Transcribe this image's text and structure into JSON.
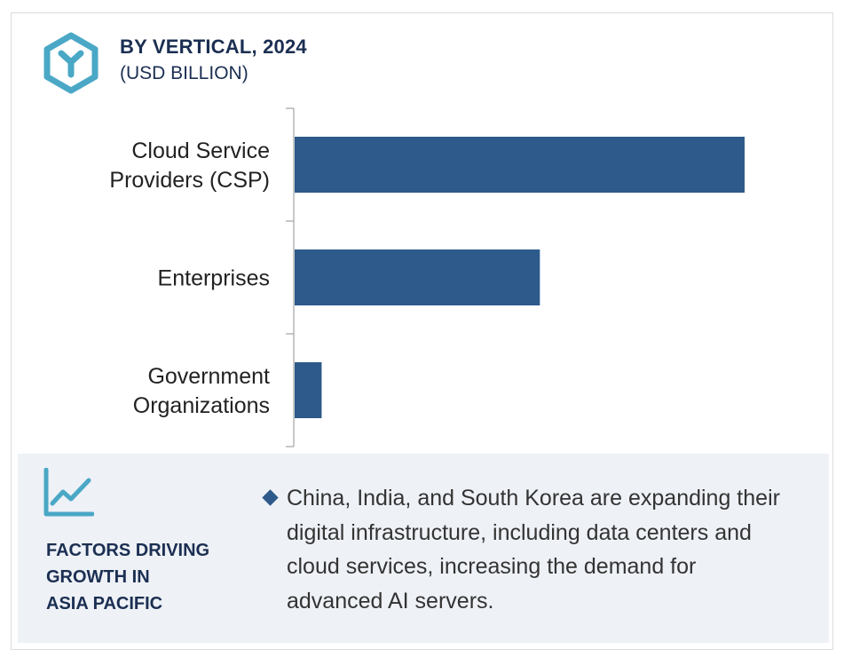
{
  "header": {
    "title": "BY VERTICAL, 2024",
    "subtitle": "(USD BILLION)",
    "logo_icon": "hexagon-y-logo-icon",
    "accent_color": "#4aa8c6"
  },
  "chart_data": {
    "type": "bar",
    "orientation": "horizontal",
    "title": "BY VERTICAL, 2024",
    "subtitle": "(USD BILLION)",
    "categories": [
      [
        "Cloud Service",
        "Providers (CSP)"
      ],
      [
        "Enterprises"
      ],
      [
        "Government",
        "Organizations"
      ]
    ],
    "values": [
      100,
      54.5,
      6
    ],
    "xlim": [
      0,
      100
    ],
    "grid": false,
    "legend": "none",
    "bar_color": "#2d5a8a",
    "value_axis_shown": false
  },
  "footer": {
    "icon": "line-chart-trend-icon",
    "heading_lines": [
      "FACTORS DRIVING",
      "GROWTH IN",
      "ASIA PACIFIC"
    ],
    "bullet_icon": "diamond-bullet-icon",
    "bullet_text": "China, India, and South Korea are expanding their digital infrastructure, including data centers and cloud services, increasing the demand for advanced AI servers.",
    "panel_color": "#eef1f6",
    "heading_color": "#1b2f52"
  }
}
